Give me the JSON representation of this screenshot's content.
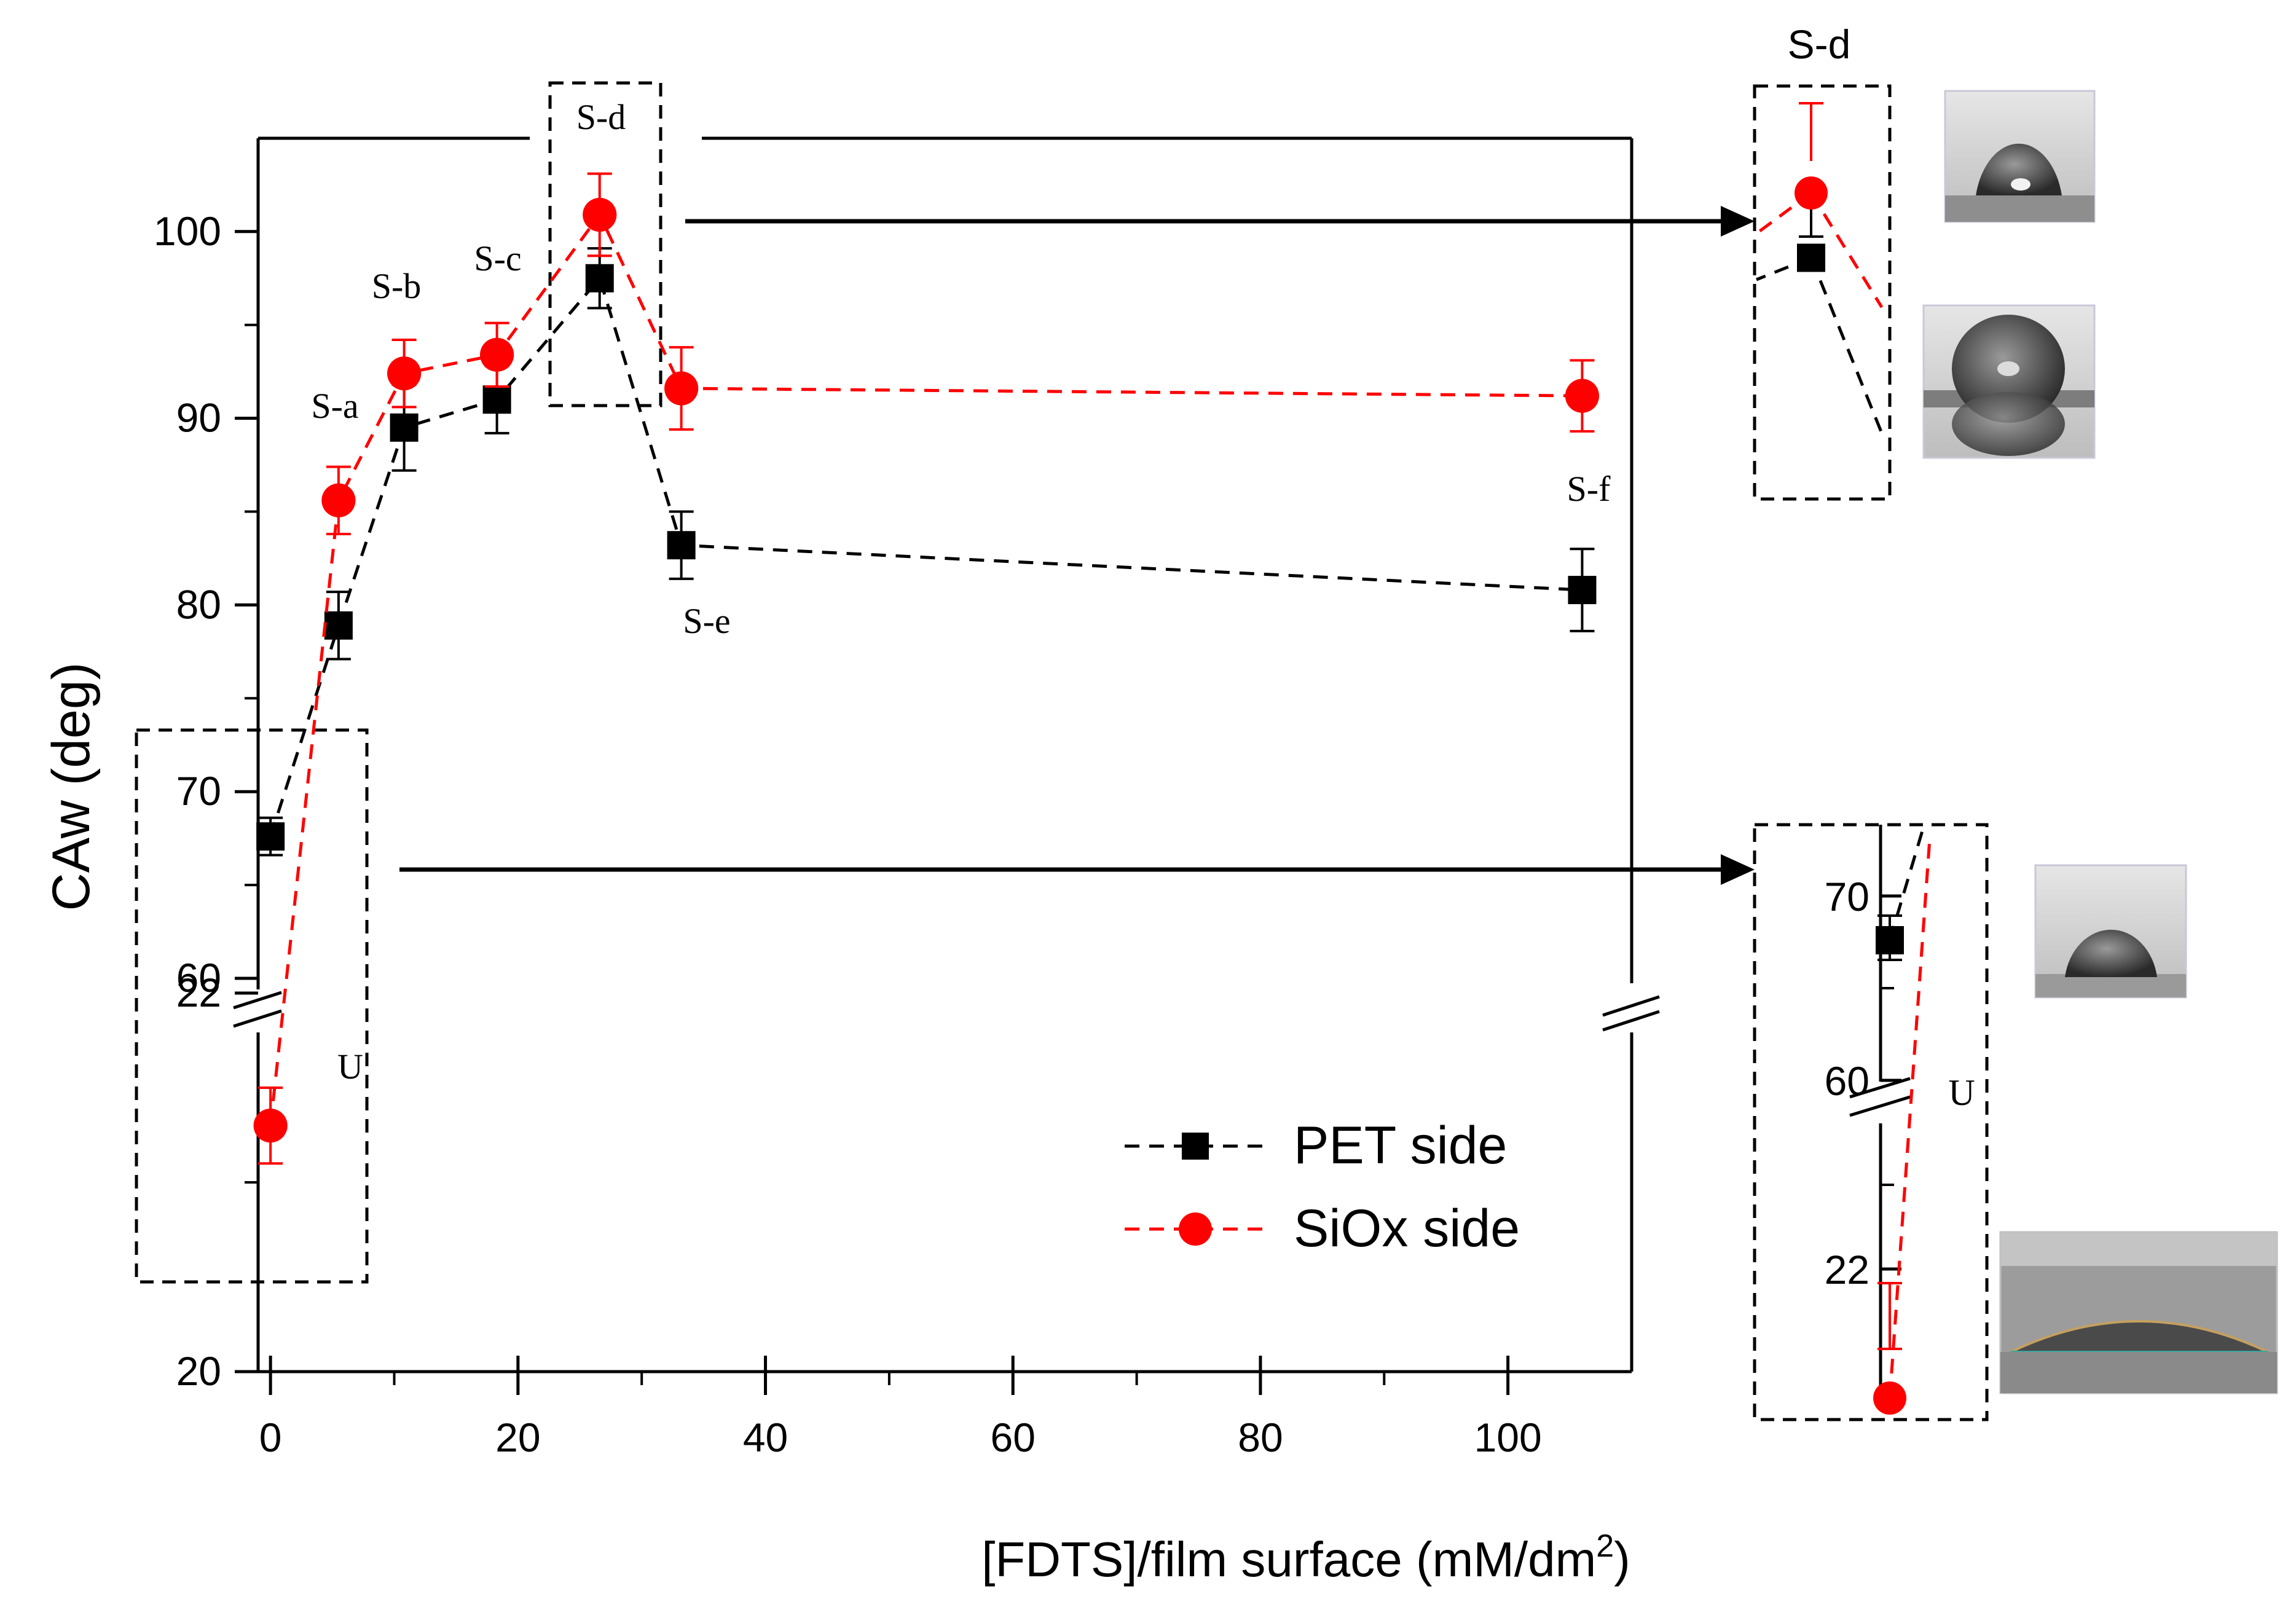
{
  "chart_data": [
    {
      "type": "scatter",
      "panel": "main",
      "xlabel": "[FDTS]/film surface (mM/dm",
      "xlabel_sup": "2",
      "xlabel_end": ")",
      "ylabel": "CAw (deg)",
      "xlim": [
        -1,
        110
      ],
      "x_ticks": [
        0,
        20,
        40,
        60,
        80,
        100
      ],
      "y_upper": {
        "range": [
          60,
          105
        ],
        "ticks": [
          60,
          70,
          80,
          90,
          100
        ]
      },
      "y_lower": {
        "range": [
          20,
          23.5
        ],
        "ticks": [
          20,
          22
        ]
      },
      "axis_break": "between 60 and 22 on y (upper/lower segments), x after 110",
      "series": [
        {
          "name": "PET side",
          "color": "#000000",
          "marker": "square",
          "x": [
            0,
            5.5,
            10.8,
            18.3,
            26.6,
            33.2,
            106
          ],
          "y": [
            67.6,
            78.9,
            89.5,
            91.0,
            97.5,
            83.2,
            80.8
          ],
          "err": [
            1.0,
            1.8,
            2.3,
            1.8,
            1.6,
            1.8,
            2.2
          ]
        },
        {
          "name": "SiOx side",
          "color": "#ff0000",
          "marker": "circle",
          "x": [
            0,
            5.5,
            10.8,
            18.3,
            26.6,
            33.2,
            106
          ],
          "y": [
            21.3,
            85.6,
            92.4,
            93.4,
            100.9,
            91.6,
            91.2
          ],
          "err": [
            0.2,
            1.8,
            1.8,
            1.7,
            2.2,
            2.2,
            1.9
          ]
        }
      ],
      "annotations": [
        "S-a",
        "S-b",
        "S-c",
        "S-d",
        "S-e",
        "S-f",
        "U"
      ],
      "legend": {
        "position": "bottom-right",
        "entries": [
          "PET side",
          "SiOx side"
        ]
      }
    },
    {
      "type": "scatter",
      "panel": "inset-top",
      "title": "S-d",
      "series": [
        {
          "name": "PET side",
          "color": "#000000",
          "marker": "square",
          "x": [
            26.6
          ],
          "y": [
            97.5
          ]
        },
        {
          "name": "SiOx side",
          "color": "#ff0000",
          "marker": "circle",
          "x": [
            26.6
          ],
          "y": [
            100.9
          ]
        }
      ],
      "images": [
        "droplet-photo",
        "droplet-photo"
      ]
    },
    {
      "type": "scatter",
      "panel": "inset-bottom",
      "title": "U",
      "y_upper": {
        "ticks": [
          60,
          70
        ]
      },
      "y_lower": {
        "ticks": [
          22
        ]
      },
      "series": [
        {
          "name": "PET side",
          "color": "#000000",
          "marker": "square",
          "x": [
            0
          ],
          "y": [
            67.6
          ]
        },
        {
          "name": "SiOx side",
          "color": "#ff0000",
          "marker": "circle",
          "x": [
            0
          ],
          "y": [
            21.3
          ]
        }
      ],
      "images": [
        "droplet-photo",
        "flat-droplet-photo"
      ]
    }
  ],
  "colors": {
    "pet": "#000000",
    "siox": "#ff0000"
  }
}
